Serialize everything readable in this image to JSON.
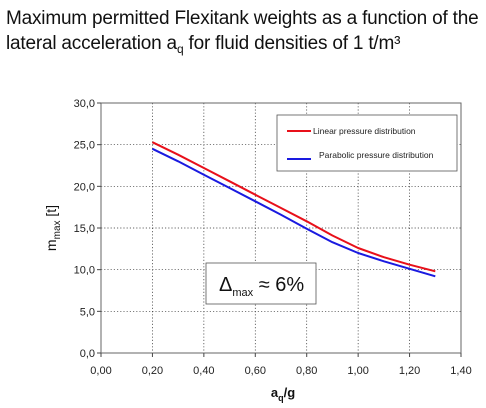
{
  "title": {
    "line1": "Maximum permitted Flexitank weights as a function of the",
    "line2_before": "lateral acceleration a",
    "line2_sub": "q",
    "line2_after": " for fluid densities of 1 t/m³"
  },
  "chart_data": {
    "type": "line",
    "xlabel": {
      "main": "a",
      "sub": "q",
      "after": "/g"
    },
    "ylabel": {
      "main": "m",
      "sub": "max",
      "after": " [t]"
    },
    "xlim": [
      0,
      1.4
    ],
    "ylim": [
      0,
      30
    ],
    "x_ticks": [
      "0,00",
      "0,20",
      "0,40",
      "0,60",
      "0,80",
      "1,00",
      "1,20",
      "1,40"
    ],
    "y_ticks": [
      "0,0",
      "5,0",
      "10,0",
      "15,0",
      "20,0",
      "25,0",
      "30,0"
    ],
    "grid": "dotted",
    "legend_position": "top-right",
    "series": [
      {
        "name": "Linear pressure distribution",
        "color": "#e8101a",
        "x": [
          0.2,
          0.3,
          0.4,
          0.5,
          0.6,
          0.7,
          0.8,
          0.9,
          1.0,
          1.1,
          1.2,
          1.3
        ],
        "values": [
          25.3,
          23.8,
          22.2,
          20.6,
          19.0,
          17.4,
          15.8,
          14.1,
          12.6,
          11.5,
          10.6,
          9.8
        ]
      },
      {
        "name": "Parabolic pressure distribution",
        "color": "#1a1ae0",
        "x": [
          0.2,
          0.3,
          0.4,
          0.5,
          0.6,
          0.7,
          0.8,
          0.9,
          1.0,
          1.1,
          1.2,
          1.3
        ],
        "values": [
          24.5,
          23.0,
          21.4,
          19.8,
          18.2,
          16.6,
          14.9,
          13.3,
          12.0,
          11.0,
          10.1,
          9.2
        ]
      }
    ],
    "annotation": {
      "symbol": "Δ",
      "sub": "max",
      "text": " ≈ 6%"
    }
  }
}
